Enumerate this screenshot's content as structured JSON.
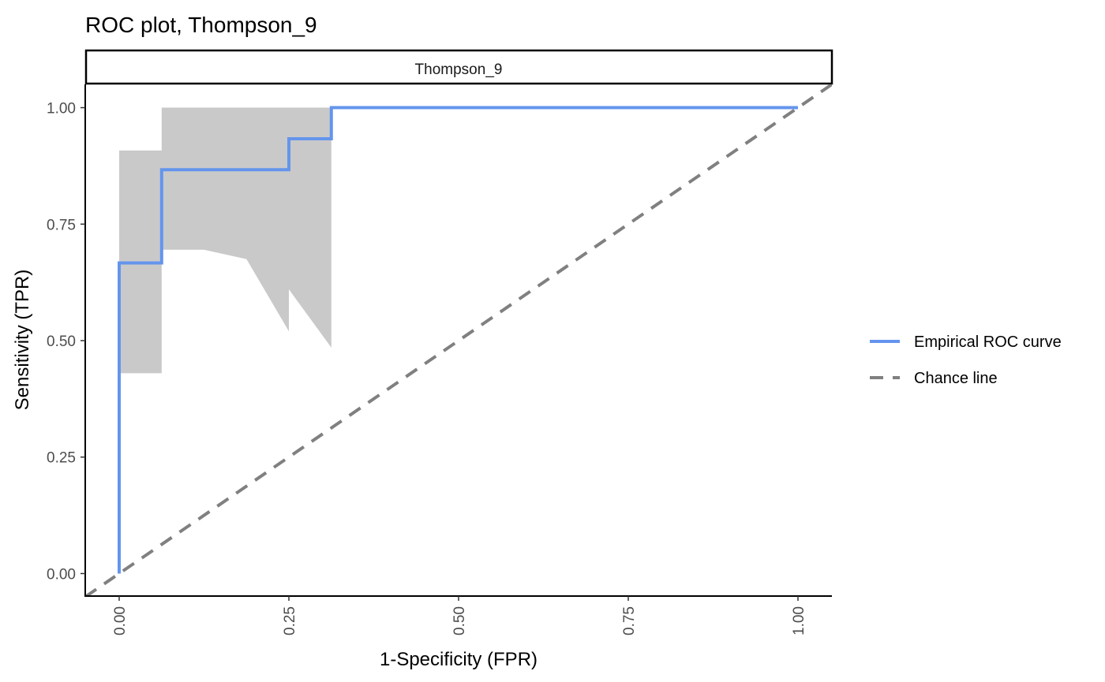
{
  "chart_data": {
    "type": "line",
    "title": "ROC plot, Thompson_9",
    "facet_label": "Thompson_9",
    "xlabel": "1-Specificity (FPR)",
    "ylabel": "Sensitivity (TPR)",
    "xlim": [
      -0.05,
      1.05
    ],
    "ylim": [
      -0.05,
      1.05
    ],
    "x_ticks": [
      0,
      0.25,
      0.5,
      0.75,
      1
    ],
    "x_tick_labels": [
      "0.00",
      "0.25",
      "0.50",
      "0.75",
      "1.00"
    ],
    "y_ticks": [
      0,
      0.25,
      0.5,
      0.75,
      1
    ],
    "y_tick_labels": [
      "0.00",
      "0.25",
      "0.50",
      "0.75",
      "1.00"
    ],
    "grid": false,
    "legend_position": "right",
    "series": [
      {
        "name": "Empirical ROC curve",
        "color": "#6495ED",
        "style": "solid",
        "x": [
          0,
          0,
          0,
          0.0625,
          0.0625,
          0.25,
          0.25,
          0.3125,
          0.3125,
          1
        ],
        "y": [
          0,
          0.6667,
          0.6667,
          0.6667,
          0.8667,
          0.8667,
          0.9333,
          0.9333,
          1,
          1
        ]
      },
      {
        "name": "Chance line",
        "color": "#808080",
        "style": "dashed",
        "x": [
          -0.05,
          1.05
        ],
        "y": [
          -0.05,
          1.05
        ]
      }
    ],
    "confidence_band": {
      "color": "#C9C9C9",
      "x": [
        0,
        0.0625,
        0.0625,
        0.125,
        0.1875,
        0.25,
        0.25,
        0.3125
      ],
      "lower": [
        0.43,
        0.43,
        0.695,
        0.695,
        0.675,
        0.52,
        0.61,
        0.485
      ],
      "upper": [
        0.908,
        0.908,
        1.0,
        1.0,
        1.0,
        1.0,
        1.0,
        1.0
      ]
    }
  }
}
